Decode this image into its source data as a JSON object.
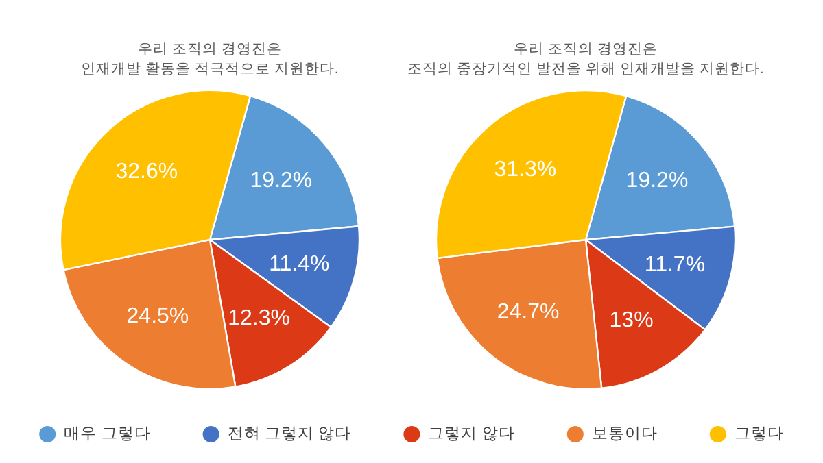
{
  "chart_data": {
    "type": "pie",
    "categories": [
      "매우 그렇다",
      "전혀 그렇지 않다",
      "그렇지 않다",
      "보통이다",
      "그렇다"
    ],
    "colors": [
      "#5b9bd5",
      "#4472c4",
      "#dc3a16",
      "#ed7d31",
      "#ffc000"
    ],
    "series": [
      {
        "name": "우리 조직의 경영진은\n인재개발 활동을 적극적으로 지원한다.",
        "values": [
          19.2,
          11.4,
          12.3,
          24.5,
          32.6
        ],
        "value_labels": [
          "19.2%",
          "11.4%",
          "12.3%",
          "24.5%",
          "32.6%"
        ]
      },
      {
        "name": "우리 조직의 경영진은\n조직의 중장기적인 발전을 위해 인재개발을 지원한다.",
        "values": [
          19.2,
          11.7,
          13,
          24.7,
          31.3
        ],
        "value_labels": [
          "19.2%",
          "11.7%",
          "13%",
          "24.7%",
          "31.3%"
        ]
      }
    ],
    "legend": "bottom"
  }
}
